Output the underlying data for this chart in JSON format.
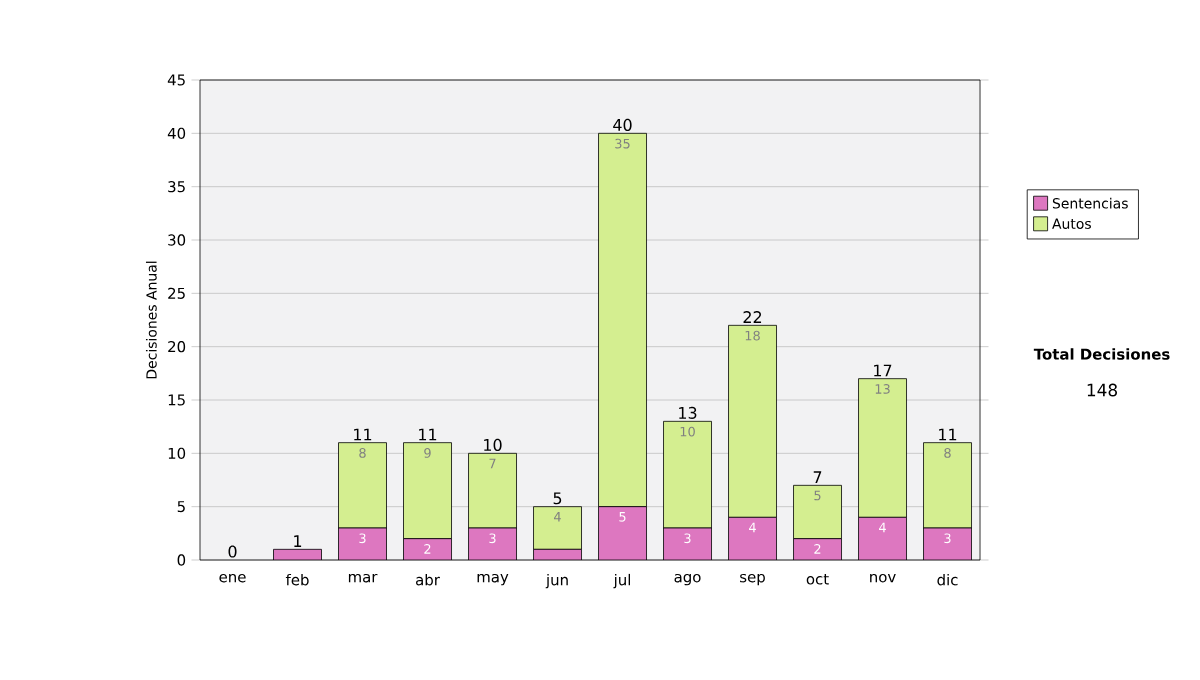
{
  "chart_data": {
    "type": "bar",
    "stacked": true,
    "ylabel": "Decisiones Anual",
    "categories": [
      "ene",
      "feb",
      "mar",
      "abr",
      "may",
      "jun",
      "jul",
      "ago",
      "sep",
      "oct",
      "nov",
      "dic"
    ],
    "series": [
      {
        "name": "Sentencias",
        "color": "#dd77c0",
        "values": [
          0,
          1,
          3,
          2,
          3,
          1,
          5,
          3,
          4,
          2,
          4,
          3
        ],
        "value_labels": [
          null,
          null,
          "3",
          "2",
          "3",
          null,
          "5",
          "3",
          "4",
          "2",
          "4",
          "3"
        ]
      },
      {
        "name": "Autos",
        "color": "#d4ee90",
        "values": [
          0,
          0,
          8,
          9,
          7,
          4,
          35,
          10,
          18,
          5,
          13,
          8
        ],
        "value_labels": [
          null,
          null,
          "8",
          "9",
          "7",
          "4",
          "35",
          "10",
          "18",
          "5",
          "13",
          "8"
        ]
      }
    ],
    "totals": [
      "0",
      "1",
      "11",
      "11",
      "10",
      "5",
      "40",
      "13",
      "22",
      "7",
      "17",
      "11"
    ],
    "ylim": [
      0,
      45
    ],
    "yticks": [
      0,
      5,
      10,
      15,
      20,
      25,
      30,
      35,
      40,
      45
    ],
    "grid": "y",
    "legend": "right",
    "annotations": [
      "Total Decisiones",
      "148"
    ]
  }
}
